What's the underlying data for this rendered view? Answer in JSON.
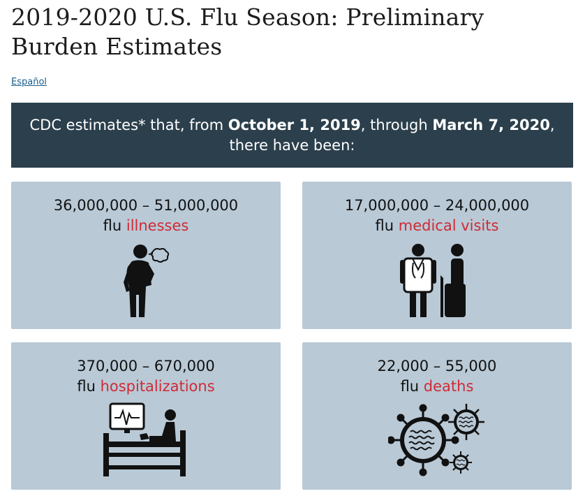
{
  "page": {
    "title": "2019-2020 U.S. Flu Season: Preliminary Burden Estimates",
    "language_link": "Español"
  },
  "banner": {
    "part1": "CDC estimates* that, from ",
    "date_start": "October 1, 2019",
    "part2": ", through ",
    "date_end": "March 7, 2020",
    "part3": ",",
    "part4": "there have been:"
  },
  "estimates": [
    {
      "range": "36,000,000 – 51,000,000",
      "prefix": "flu ",
      "keyword": "illnesses",
      "icon": "sick-person-icon"
    },
    {
      "range": "17,000,000 – 24,000,000",
      "prefix": "flu ",
      "keyword": "medical visits",
      "icon": "doctor-patient-icon"
    },
    {
      "range": "370,000 – 670,000",
      "prefix": "flu ",
      "keyword": "hospitalizations",
      "icon": "hospital-bed-icon"
    },
    {
      "range": "22,000 – 55,000",
      "prefix": "flu ",
      "keyword": "deaths",
      "icon": "virus-icon"
    }
  ],
  "colors": {
    "banner_bg": "#2b3f4c",
    "card_bg": "#b9c9d6",
    "keyword": "#cf2a36",
    "link": "#1b5d8c"
  }
}
